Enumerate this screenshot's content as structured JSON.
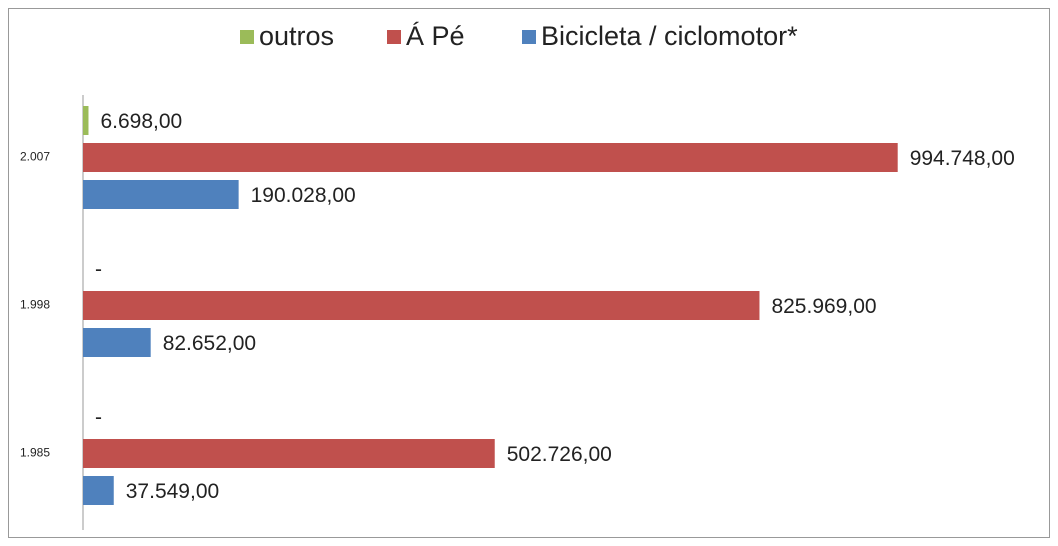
{
  "chart_data": {
    "type": "bar",
    "orientation": "horizontal",
    "categories": [
      "2.007",
      "1.998",
      "1.985"
    ],
    "series": [
      {
        "name": "outros",
        "color": "#9bbb59",
        "values": [
          6698,
          0,
          0
        ],
        "value_labels": [
          "6.698,00",
          "-",
          "-"
        ]
      },
      {
        "name": "Á Pé",
        "color": "#c0504d",
        "values": [
          994748,
          825969,
          502726
        ],
        "value_labels": [
          "994.748,00",
          "825.969,00",
          "502.726,00"
        ]
      },
      {
        "name": "Bicicleta / ciclomotor*",
        "color": "#4f81bd",
        "values": [
          190028,
          82652,
          37549
        ],
        "value_labels": [
          "190.028,00",
          "82.652,00",
          "37.549,00"
        ]
      }
    ],
    "xlim": [
      0,
      1000000
    ]
  }
}
